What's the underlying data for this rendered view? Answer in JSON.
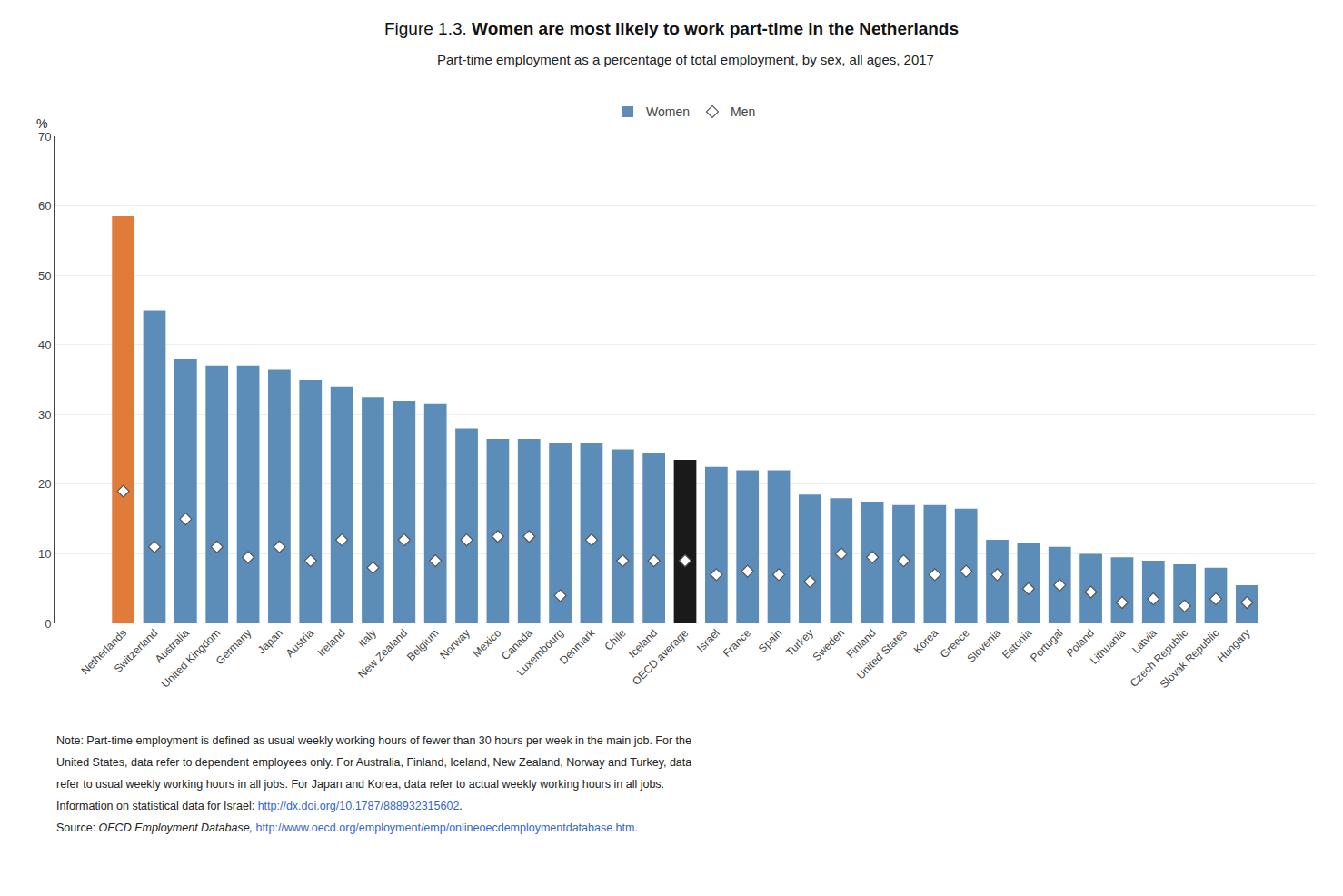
{
  "chart_data": {
    "type": "bar",
    "title_prefix": "Figure 1.3. ",
    "title": "Women are most likely to work part-time in the Netherlands",
    "subtitle": "Part-time employment as a percentage of total employment, by sex, all ages, 2017",
    "ylabel": "%",
    "categories": [
      "Netherlands",
      "Switzerland",
      "Australia",
      "United Kingdom",
      "Germany",
      "Japan",
      "Austria",
      "Ireland",
      "Italy",
      "New Zealand",
      "Belgium",
      "Norway",
      "Mexico",
      "Canada",
      "Luxembourg",
      "Denmark",
      "Chile",
      "Iceland",
      "OECD average",
      "Israel",
      "France",
      "Spain",
      "Turkey",
      "Sweden",
      "Finland",
      "United States",
      "Korea",
      "Greece",
      "Slovenia",
      "Estonia",
      "Portugal",
      "Poland",
      "Lithuania",
      "Latvia",
      "Czech Republic",
      "Slovak Republic",
      "Hungary"
    ],
    "series": [
      {
        "name": "Women",
        "type": "bar",
        "color": "#5B8DB8",
        "colors": [
          "#E07B39",
          "#5B8DB8",
          "#5B8DB8",
          "#5B8DB8",
          "#5B8DB8",
          "#5B8DB8",
          "#5B8DB8",
          "#5B8DB8",
          "#5B8DB8",
          "#5B8DB8",
          "#5B8DB8",
          "#5B8DB8",
          "#5B8DB8",
          "#5B8DB8",
          "#5B8DB8",
          "#5B8DB8",
          "#5B8DB8",
          "#5B8DB8",
          "#1A1A1A",
          "#5B8DB8",
          "#5B8DB8",
          "#5B8DB8",
          "#5B8DB8",
          "#5B8DB8",
          "#5B8DB8",
          "#5B8DB8",
          "#5B8DB8",
          "#5B8DB8",
          "#5B8DB8",
          "#5B8DB8",
          "#5B8DB8",
          "#5B8DB8",
          "#5B8DB8",
          "#5B8DB8",
          "#5B8DB8",
          "#5B8DB8",
          "#5B8DB8"
        ],
        "values": [
          58.5,
          45.0,
          38.0,
          37.0,
          37.0,
          36.5,
          35.0,
          34.0,
          32.5,
          32.0,
          31.5,
          28.0,
          26.5,
          26.5,
          26.0,
          26.0,
          25.0,
          24.5,
          23.5,
          22.5,
          22.0,
          22.0,
          18.5,
          18.0,
          17.5,
          17.0,
          17.0,
          16.5,
          12.0,
          11.5,
          11.0,
          10.0,
          9.5,
          9.0,
          8.5,
          8.0,
          5.5
        ]
      },
      {
        "name": "Men",
        "type": "scatter",
        "marker": "diamond",
        "color": "#FFFFFF",
        "values": [
          19.0,
          11.0,
          15.0,
          11.0,
          9.5,
          11.0,
          9.0,
          12.0,
          8.0,
          12.0,
          9.0,
          12.0,
          12.5,
          12.5,
          4.0,
          12.0,
          9.0,
          9.0,
          9.0,
          7.0,
          7.5,
          7.0,
          6.0,
          10.0,
          9.5,
          9.0,
          7.0,
          7.5,
          7.0,
          5.0,
          5.5,
          4.5,
          3.0,
          3.5,
          2.5,
          3.5,
          3.0
        ]
      }
    ],
    "ylim": [
      0,
      70
    ],
    "yticks": [
      0,
      10,
      20,
      30,
      40,
      50,
      60,
      70
    ],
    "grid": true,
    "legend": "top",
    "notes": [
      [
        "Note: Part-time employment is defined as usual weekly working hours of fewer than 30 hours per week in the main job. For the"
      ],
      [
        "United States, data refer to dependent employees only. For Australia, Finland, Iceland, New Zealand, Norway and Turkey, data"
      ],
      [
        "refer to usual weekly working hours in all jobs. For Japan and Korea, data refer to actual weekly working hours in all jobs."
      ],
      [
        "Information on statistical data for Israel: ",
        {
          "link": "http://dx.doi.org/10.1787/888932315602"
        },
        "."
      ],
      [
        "Source: ",
        {
          "italic": "OECD Employment Database,"
        },
        " ",
        {
          "link": "http://www.oecd.org/employment/emp/onlineoecdemploymentdatabase.htm"
        },
        "."
      ]
    ]
  }
}
